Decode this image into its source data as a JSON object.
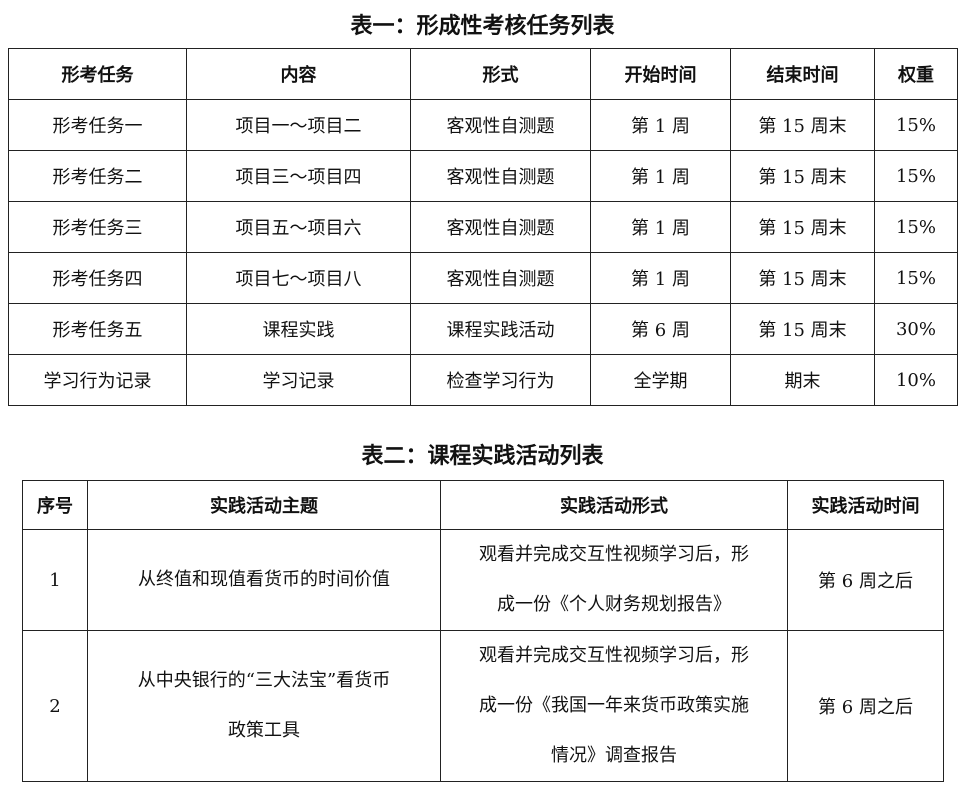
{
  "table1": {
    "title": "表一：形成性考核任务列表",
    "headers": [
      "形考任务",
      "内容",
      "形式",
      "开始时间",
      "结束时间",
      "权重"
    ],
    "rows": [
      [
        "形考任务一",
        "项目一～项目二",
        "客观性自测题",
        "第 1 周",
        "第 15 周末",
        "15%"
      ],
      [
        "形考任务二",
        "项目三～项目四",
        "客观性自测题",
        "第 1 周",
        "第 15 周末",
        "15%"
      ],
      [
        "形考任务三",
        "项目五～项目六",
        "客观性自测题",
        "第 1 周",
        "第 15 周末",
        "15%"
      ],
      [
        "形考任务四",
        "项目七～项目八",
        "客观性自测题",
        "第 1 周",
        "第 15 周末",
        "15%"
      ],
      [
        "形考任务五",
        "课程实践",
        "课程实践活动",
        "第 6 周",
        "第 15 周末",
        "30%"
      ],
      [
        "学习行为记录",
        "学习记录",
        "检查学习行为",
        "全学期",
        "期末",
        "10%"
      ]
    ]
  },
  "table2": {
    "title": "表二：课程实践活动列表",
    "headers": [
      "序号",
      "实践活动主题",
      "实践活动形式",
      "实践活动时间"
    ],
    "rows": [
      {
        "no": "1",
        "theme": [
          "从终值和现值看货币的时间价值"
        ],
        "form": [
          "观看并完成交互性视频学习后，形",
          "成一份《个人财务规划报告》"
        ],
        "time": "第 6 周之后"
      },
      {
        "no": "2",
        "theme": [
          "从中央银行的“三大法宝”看货币",
          "政策工具"
        ],
        "form": [
          "观看并完成交互性视频学习后，形",
          "成一份《我国一年来货币政策实施",
          "情况》调查报告"
        ],
        "time": "第 6 周之后"
      }
    ]
  }
}
